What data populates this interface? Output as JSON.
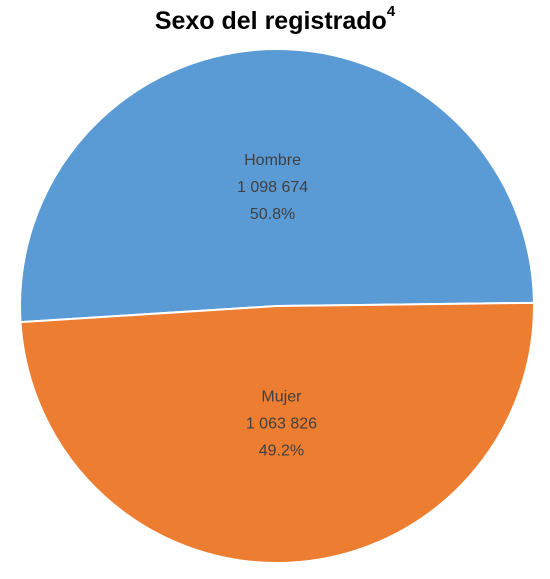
{
  "chart_data": {
    "type": "pie",
    "title": "Sexo del registrado",
    "title_superscript": "4",
    "categories": [
      "Hombre",
      "Mujer"
    ],
    "values": [
      1098674,
      1063826
    ],
    "value_labels": [
      "1 098 674",
      "1 063 826"
    ],
    "percent_labels": [
      "50.8%",
      "49.2%"
    ],
    "colors": [
      "#5b9bd5",
      "#ed7d31"
    ]
  }
}
